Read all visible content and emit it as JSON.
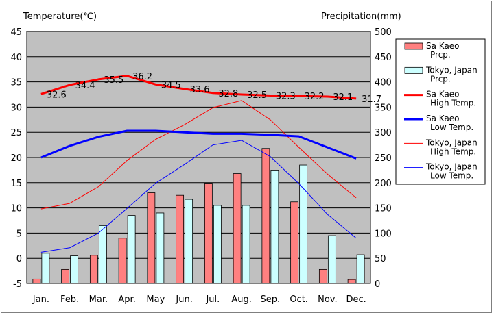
{
  "chart_data": {
    "type": "bar+line",
    "categories": [
      "Jan.",
      "Feb.",
      "Mar.",
      "Apr.",
      "May",
      "Jun.",
      "Jul.",
      "Aug.",
      "Sep.",
      "Oct.",
      "Nov.",
      "Dec."
    ],
    "left_axis": {
      "label": "Temperature(℃)",
      "range": [
        -5,
        45
      ],
      "ticks": [
        "-5",
        "0",
        "5",
        "10",
        "15",
        "20",
        "25",
        "30",
        "35",
        "40",
        "45"
      ]
    },
    "right_axis": {
      "label": "Precipitation(mm)",
      "range": [
        0,
        500
      ],
      "ticks": [
        "0",
        "50",
        "100",
        "150",
        "200",
        "250",
        "300",
        "350",
        "400",
        "450",
        "500"
      ]
    },
    "series": [
      {
        "name": "Sa Kaeo Prcp.",
        "kind": "bar",
        "axis": "right",
        "color": "#ff8080",
        "values": [
          9,
          28,
          56,
          90,
          180,
          175,
          199,
          218,
          268,
          162,
          28,
          8
        ]
      },
      {
        "name": "Tokyo, Japan Prcp.",
        "kind": "bar",
        "axis": "right",
        "color": "#ccffff",
        "values": [
          60,
          55,
          115,
          135,
          140,
          167,
          155,
          155,
          225,
          235,
          95,
          57
        ]
      },
      {
        "name": "Sa Kaeo High Temp.",
        "kind": "line",
        "axis": "left",
        "color": "#ff0000",
        "width": 3,
        "values": [
          32.6,
          34.4,
          35.5,
          36.2,
          34.5,
          33.6,
          32.8,
          32.5,
          32.3,
          32.2,
          32.1,
          31.7
        ],
        "labels": [
          "32.6",
          "34.4",
          "35.5",
          "36.2",
          "34.5",
          "33.6",
          "32.8",
          "32.5",
          "32.3",
          "32.2",
          "32.1",
          "31.7"
        ]
      },
      {
        "name": "Sa Kaeo Low Temp.",
        "kind": "line",
        "axis": "left",
        "color": "#0000ff",
        "width": 3,
        "values": [
          20.0,
          22.3,
          24.1,
          25.3,
          25.3,
          25.0,
          24.7,
          24.7,
          24.5,
          24.2,
          22.0,
          19.8
        ]
      },
      {
        "name": "Tokyo, Japan High Temp.",
        "kind": "line",
        "axis": "left",
        "color": "#ff0000",
        "width": 1,
        "values": [
          9.8,
          10.9,
          14.2,
          19.4,
          23.6,
          26.5,
          29.9,
          31.3,
          27.5,
          22.0,
          16.7,
          12.0
        ]
      },
      {
        "name": "Tokyo, Japan Low Temp.",
        "kind": "line",
        "axis": "left",
        "color": "#0000ff",
        "width": 1,
        "values": [
          1.2,
          2.1,
          5.0,
          9.9,
          14.9,
          18.6,
          22.5,
          23.4,
          20.2,
          14.8,
          8.7,
          4.0
        ]
      }
    ],
    "legend": {
      "placement": "right",
      "entries": [
        {
          "lines": [
            "Sa Kaeo",
            "Prcp."
          ],
          "kind": "bar",
          "color": "#ff8080"
        },
        {
          "lines": [
            "Tokyo, Japan",
            "Prcp."
          ],
          "kind": "bar",
          "color": "#ccffff"
        },
        {
          "lines": [
            "Sa Kaeo",
            "High Temp."
          ],
          "kind": "line",
          "color": "#ff0000",
          "width": 3
        },
        {
          "lines": [
            "Sa Kaeo",
            "Low Temp."
          ],
          "kind": "line",
          "color": "#0000ff",
          "width": 3
        },
        {
          "lines": [
            "Tokyo, Japan",
            "High Temp."
          ],
          "kind": "line",
          "color": "#ff0000",
          "width": 1
        },
        {
          "lines": [
            "Tokyo, Japan",
            "Low Temp."
          ],
          "kind": "line",
          "color": "#0000ff",
          "width": 1
        }
      ]
    },
    "plot_background": "#c0c0c0",
    "grid": true
  }
}
